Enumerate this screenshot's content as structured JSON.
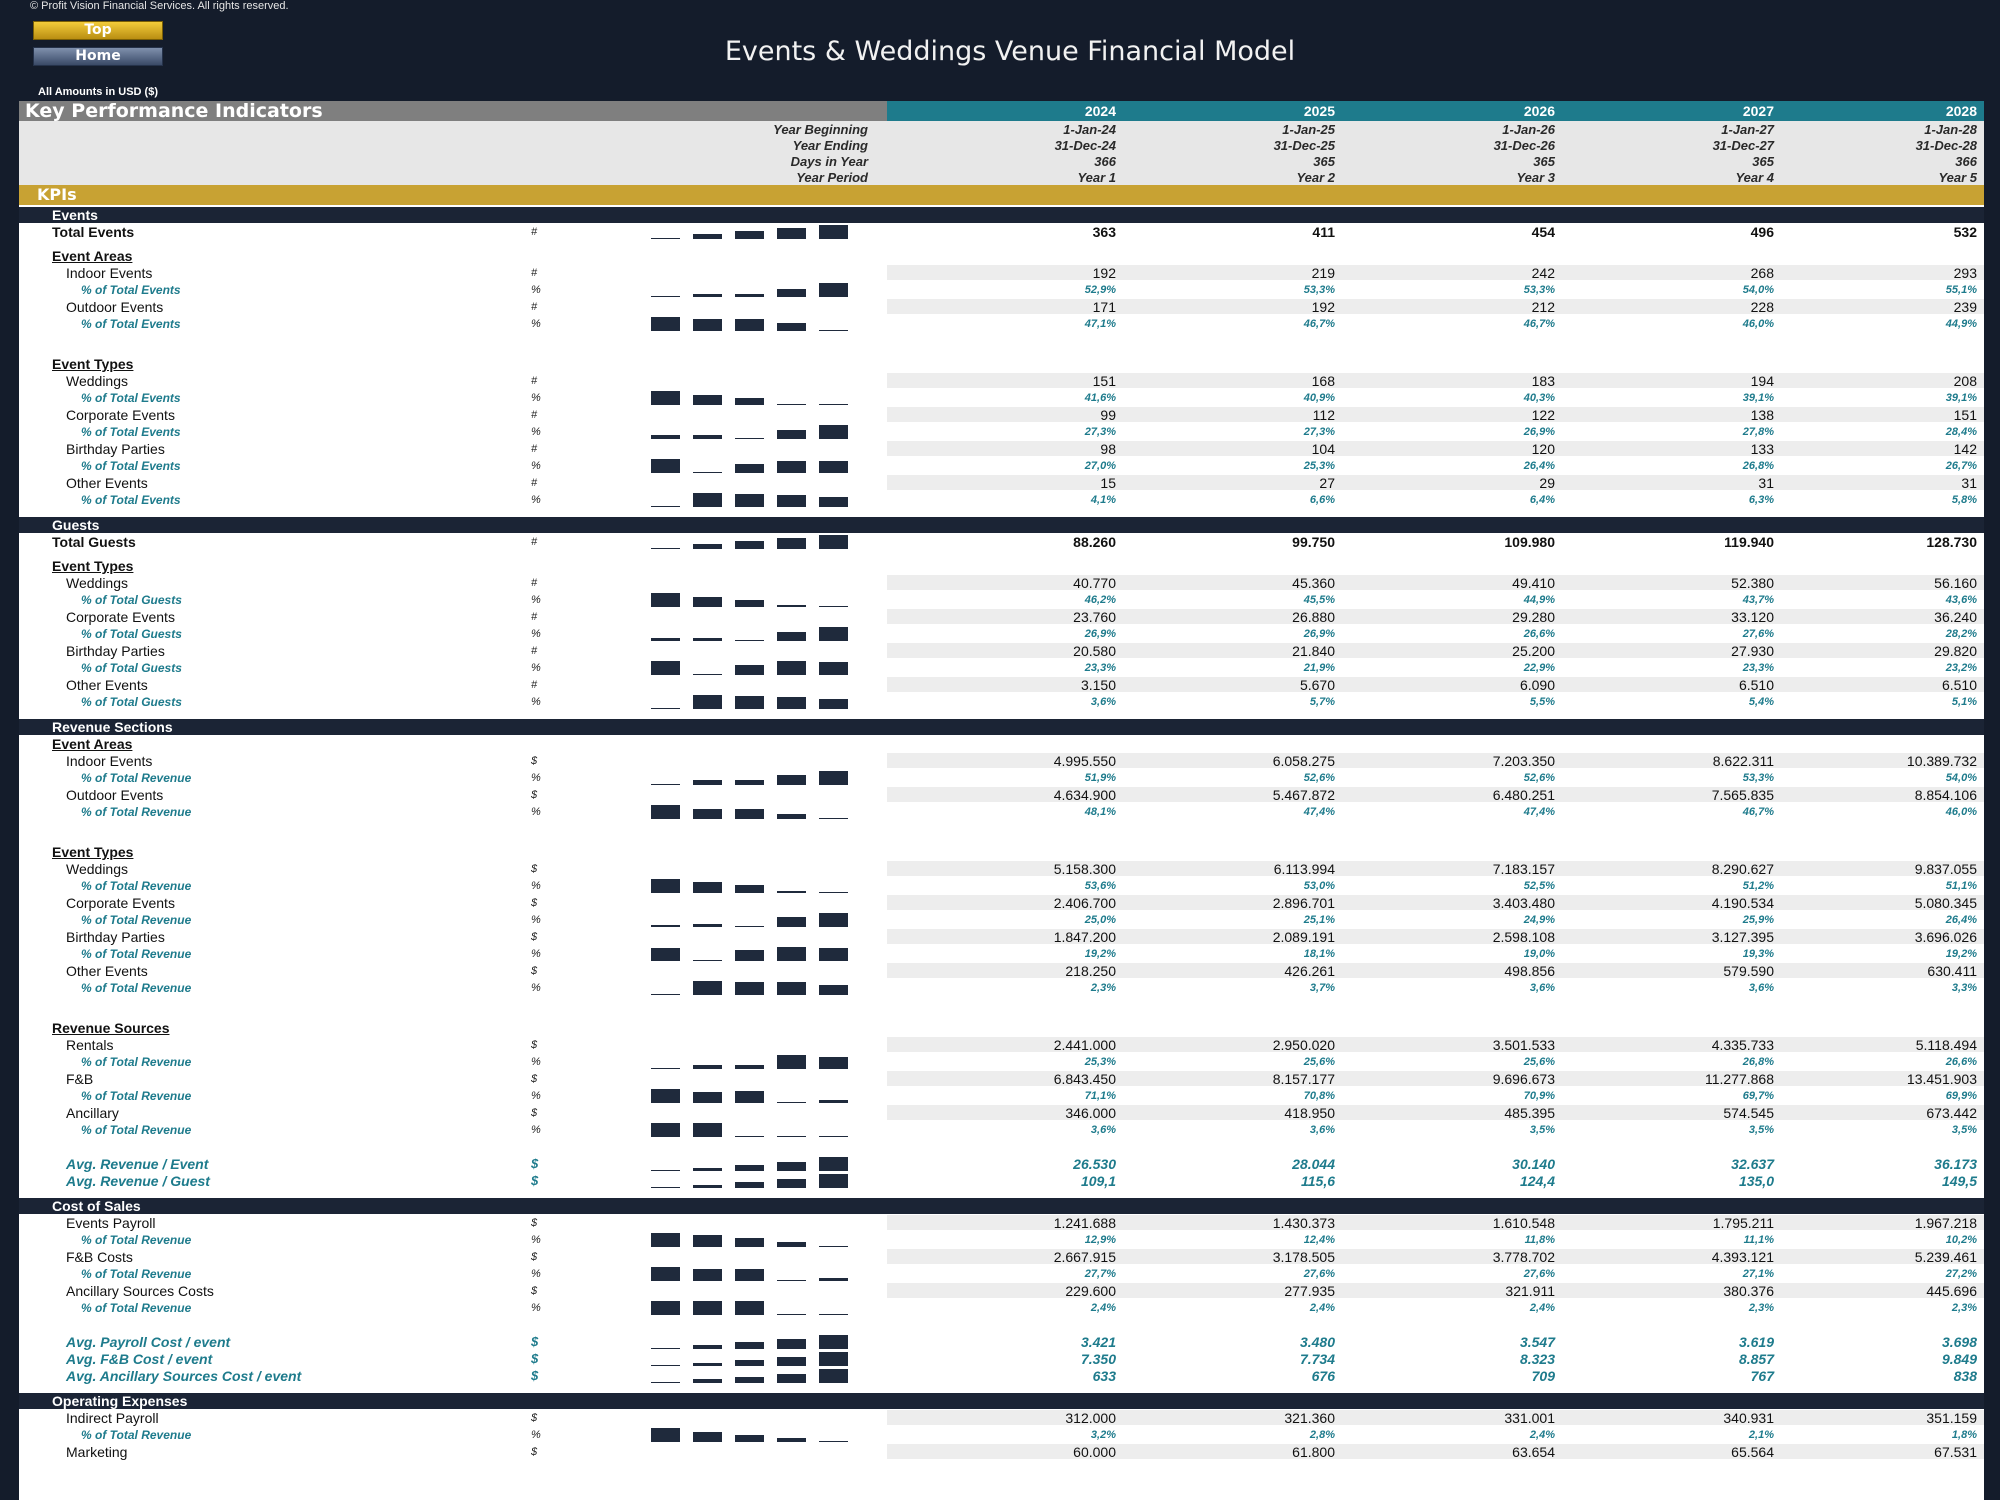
{
  "header": {
    "copyright": "© Profit Vision Financial Services. All rights reserved.",
    "top_button": "Top",
    "home_button": "Home",
    "title": "Events & Weddings Venue Financial Model",
    "amounts": "All Amounts in  USD ($)"
  },
  "colors": {
    "background": "#141c2b",
    "teal": "#1e7b8c",
    "gold": "#c8a233",
    "navy": "#1b2435",
    "gray_header": "#7f7f7f"
  },
  "kpi_title": "Key Performance Indicators",
  "kpis_label": "KPIs",
  "years": [
    "2024",
    "2025",
    "2026",
    "2027",
    "2028"
  ],
  "info": {
    "labels": [
      "Year Beginning",
      "Year Ending",
      "Days in Year",
      "Year Period"
    ],
    "rows": [
      [
        "1-Jan-24",
        "1-Jan-25",
        "1-Jan-26",
        "1-Jan-27",
        "1-Jan-28"
      ],
      [
        "31-Dec-24",
        "31-Dec-25",
        "31-Dec-26",
        "31-Dec-27",
        "31-Dec-28"
      ],
      [
        "366",
        "365",
        "365",
        "365",
        "366"
      ],
      [
        "Year 1",
        "Year 2",
        "Year 3",
        "Year 4",
        "Year 5"
      ]
    ]
  },
  "rows": [
    {
      "k": "section",
      "label": "Events"
    },
    {
      "k": "total",
      "label": "Total Events",
      "unit": "#",
      "v": [
        "363",
        "411",
        "454",
        "496",
        "532"
      ]
    },
    {
      "k": "sub",
      "label": "Event Areas"
    },
    {
      "k": "item",
      "label": "Indoor Events",
      "unit": "#",
      "v": [
        "192",
        "219",
        "242",
        "268",
        "293"
      ]
    },
    {
      "k": "pct",
      "label": "% of Total Events",
      "unit": "%",
      "v": [
        "52,9%",
        "53,3%",
        "53,3%",
        "54,0%",
        "55,1%"
      ]
    },
    {
      "k": "item",
      "label": "Outdoor Events",
      "unit": "#",
      "v": [
        "171",
        "192",
        "212",
        "228",
        "239"
      ]
    },
    {
      "k": "pct",
      "label": "% of Total Events",
      "unit": "%",
      "v": [
        "47,1%",
        "46,7%",
        "46,7%",
        "46,0%",
        "44,9%"
      ]
    },
    {
      "k": "sub",
      "label": "Event Types"
    },
    {
      "k": "item",
      "label": "Weddings",
      "unit": "#",
      "v": [
        "151",
        "168",
        "183",
        "194",
        "208"
      ]
    },
    {
      "k": "pct",
      "label": "% of Total Events",
      "unit": "%",
      "v": [
        "41,6%",
        "40,9%",
        "40,3%",
        "39,1%",
        "39,1%"
      ]
    },
    {
      "k": "item",
      "label": "Corporate Events",
      "unit": "#",
      "v": [
        "99",
        "112",
        "122",
        "138",
        "151"
      ]
    },
    {
      "k": "pct",
      "label": "% of Total Events",
      "unit": "%",
      "v": [
        "27,3%",
        "27,3%",
        "26,9%",
        "27,8%",
        "28,4%"
      ]
    },
    {
      "k": "item",
      "label": "Birthday Parties",
      "unit": "#",
      "v": [
        "98",
        "104",
        "120",
        "133",
        "142"
      ]
    },
    {
      "k": "pct",
      "label": "% of Total Events",
      "unit": "%",
      "v": [
        "27,0%",
        "25,3%",
        "26,4%",
        "26,8%",
        "26,7%"
      ]
    },
    {
      "k": "item",
      "label": "Other Events",
      "unit": "#",
      "v": [
        "15",
        "27",
        "29",
        "31",
        "31"
      ]
    },
    {
      "k": "pct",
      "label": "% of Total Events",
      "unit": "%",
      "v": [
        "4,1%",
        "6,6%",
        "6,4%",
        "6,3%",
        "5,8%"
      ]
    },
    {
      "k": "section",
      "label": "Guests"
    },
    {
      "k": "total",
      "label": "Total Guests",
      "unit": "#",
      "v": [
        "88.260",
        "99.750",
        "109.980",
        "119.940",
        "128.730"
      ]
    },
    {
      "k": "sub",
      "label": "Event Types"
    },
    {
      "k": "item",
      "label": "Weddings",
      "unit": "#",
      "v": [
        "40.770",
        "45.360",
        "49.410",
        "52.380",
        "56.160"
      ]
    },
    {
      "k": "pct",
      "label": "% of Total Guests",
      "unit": "%",
      "v": [
        "46,2%",
        "45,5%",
        "44,9%",
        "43,7%",
        "43,6%"
      ]
    },
    {
      "k": "item",
      "label": "Corporate Events",
      "unit": "#",
      "v": [
        "23.760",
        "26.880",
        "29.280",
        "33.120",
        "36.240"
      ]
    },
    {
      "k": "pct",
      "label": "% of Total Guests",
      "unit": "%",
      "v": [
        "26,9%",
        "26,9%",
        "26,6%",
        "27,6%",
        "28,2%"
      ]
    },
    {
      "k": "item",
      "label": "Birthday Parties",
      "unit": "#",
      "v": [
        "20.580",
        "21.840",
        "25.200",
        "27.930",
        "29.820"
      ]
    },
    {
      "k": "pct",
      "label": "% of Total Guests",
      "unit": "%",
      "v": [
        "23,3%",
        "21,9%",
        "22,9%",
        "23,3%",
        "23,2%"
      ]
    },
    {
      "k": "item",
      "label": "Other Events",
      "unit": "#",
      "v": [
        "3.150",
        "5.670",
        "6.090",
        "6.510",
        "6.510"
      ]
    },
    {
      "k": "pct",
      "label": "% of Total Guests",
      "unit": "%",
      "v": [
        "3,6%",
        "5,7%",
        "5,5%",
        "5,4%",
        "5,1%"
      ]
    },
    {
      "k": "section",
      "label": "Revenue Sections"
    },
    {
      "k": "sub",
      "label": "Event Areas"
    },
    {
      "k": "item",
      "label": "Indoor Events",
      "unit": "$",
      "v": [
        "4.995.550",
        "6.058.275",
        "7.203.350",
        "8.622.311",
        "10.389.732"
      ]
    },
    {
      "k": "pct",
      "label": "% of Total Revenue",
      "unit": "%",
      "v": [
        "51,9%",
        "52,6%",
        "52,6%",
        "53,3%",
        "54,0%"
      ]
    },
    {
      "k": "item",
      "label": "Outdoor Events",
      "unit": "$",
      "v": [
        "4.634.900",
        "5.467.872",
        "6.480.251",
        "7.565.835",
        "8.854.106"
      ]
    },
    {
      "k": "pct",
      "label": "% of Total Revenue",
      "unit": "%",
      "v": [
        "48,1%",
        "47,4%",
        "47,4%",
        "46,7%",
        "46,0%"
      ]
    },
    {
      "k": "sub",
      "label": "Event Types"
    },
    {
      "k": "item",
      "label": "Weddings",
      "unit": "$",
      "v": [
        "5.158.300",
        "6.113.994",
        "7.183.157",
        "8.290.627",
        "9.837.055"
      ]
    },
    {
      "k": "pct",
      "label": "% of Total Revenue",
      "unit": "%",
      "v": [
        "53,6%",
        "53,0%",
        "52,5%",
        "51,2%",
        "51,1%"
      ]
    },
    {
      "k": "item",
      "label": "Corporate Events",
      "unit": "$",
      "v": [
        "2.406.700",
        "2.896.701",
        "3.403.480",
        "4.190.534",
        "5.080.345"
      ]
    },
    {
      "k": "pct",
      "label": "% of Total Revenue",
      "unit": "%",
      "v": [
        "25,0%",
        "25,1%",
        "24,9%",
        "25,9%",
        "26,4%"
      ]
    },
    {
      "k": "item",
      "label": "Birthday Parties",
      "unit": "$",
      "v": [
        "1.847.200",
        "2.089.191",
        "2.598.108",
        "3.127.395",
        "3.696.026"
      ]
    },
    {
      "k": "pct",
      "label": "% of Total Revenue",
      "unit": "%",
      "v": [
        "19,2%",
        "18,1%",
        "19,0%",
        "19,3%",
        "19,2%"
      ]
    },
    {
      "k": "item",
      "label": "Other Events",
      "unit": "$",
      "v": [
        "218.250",
        "426.261",
        "498.856",
        "579.590",
        "630.411"
      ]
    },
    {
      "k": "pct",
      "label": "% of Total Revenue",
      "unit": "%",
      "v": [
        "2,3%",
        "3,7%",
        "3,6%",
        "3,6%",
        "3,3%"
      ]
    },
    {
      "k": "sub",
      "label": "Revenue Sources"
    },
    {
      "k": "item",
      "label": "Rentals",
      "unit": "$",
      "v": [
        "2.441.000",
        "2.950.020",
        "3.501.533",
        "4.335.733",
        "5.118.494"
      ]
    },
    {
      "k": "pct",
      "label": "% of Total Revenue",
      "unit": "%",
      "v": [
        "25,3%",
        "25,6%",
        "25,6%",
        "26,8%",
        "26,6%"
      ]
    },
    {
      "k": "item",
      "label": "F&B",
      "unit": "$",
      "v": [
        "6.843.450",
        "8.157.177",
        "9.696.673",
        "11.277.868",
        "13.451.903"
      ]
    },
    {
      "k": "pct",
      "label": "% of Total Revenue",
      "unit": "%",
      "v": [
        "71,1%",
        "70,8%",
        "70,9%",
        "69,7%",
        "69,9%"
      ]
    },
    {
      "k": "item",
      "label": "Ancillary",
      "unit": "$",
      "v": [
        "346.000",
        "418.950",
        "485.395",
        "574.545",
        "673.442"
      ]
    },
    {
      "k": "pct",
      "label": "% of Total Revenue",
      "unit": "%",
      "v": [
        "3,6%",
        "3,6%",
        "3,5%",
        "3,5%",
        "3,5%"
      ]
    },
    {
      "k": "avg",
      "label": "Avg. Revenue / Event",
      "unit": "$",
      "v": [
        "26.530",
        "28.044",
        "30.140",
        "32.637",
        "36.173"
      ]
    },
    {
      "k": "avg",
      "label": "Avg. Revenue / Guest",
      "unit": "$",
      "v": [
        "109,1",
        "115,6",
        "124,4",
        "135,0",
        "149,5"
      ]
    },
    {
      "k": "section",
      "label": "Cost of Sales"
    },
    {
      "k": "item",
      "label": "Events Payroll",
      "unit": "$",
      "v": [
        "1.241.688",
        "1.430.373",
        "1.610.548",
        "1.795.211",
        "1.967.218"
      ]
    },
    {
      "k": "pct",
      "label": "% of Total Revenue",
      "unit": "%",
      "v": [
        "12,9%",
        "12,4%",
        "11,8%",
        "11,1%",
        "10,2%"
      ]
    },
    {
      "k": "item",
      "label": "F&B Costs",
      "unit": "$",
      "v": [
        "2.667.915",
        "3.178.505",
        "3.778.702",
        "4.393.121",
        "5.239.461"
      ]
    },
    {
      "k": "pct",
      "label": "% of Total Revenue",
      "unit": "%",
      "v": [
        "27,7%",
        "27,6%",
        "27,6%",
        "27,1%",
        "27,2%"
      ]
    },
    {
      "k": "item",
      "label": "Ancillary Sources Costs",
      "unit": "$",
      "v": [
        "229.600",
        "277.935",
        "321.911",
        "380.376",
        "445.696"
      ]
    },
    {
      "k": "pct",
      "label": "% of Total Revenue",
      "unit": "%",
      "v": [
        "2,4%",
        "2,4%",
        "2,4%",
        "2,3%",
        "2,3%"
      ]
    },
    {
      "k": "avg",
      "label": "Avg. Payroll Cost / event",
      "unit": "$",
      "v": [
        "3.421",
        "3.480",
        "3.547",
        "3.619",
        "3.698"
      ]
    },
    {
      "k": "avg",
      "label": "Avg. F&B Cost / event",
      "unit": "$",
      "v": [
        "7.350",
        "7.734",
        "8.323",
        "8.857",
        "9.849"
      ]
    },
    {
      "k": "avg",
      "label": "Avg. Ancillary Sources Cost / event",
      "unit": "$",
      "v": [
        "633",
        "676",
        "709",
        "767",
        "838"
      ]
    },
    {
      "k": "section",
      "label": "Operating Expenses"
    },
    {
      "k": "item",
      "label": "Indirect Payroll",
      "unit": "$",
      "v": [
        "312.000",
        "321.360",
        "331.001",
        "340.931",
        "351.159"
      ]
    },
    {
      "k": "pct",
      "label": "% of Total Revenue",
      "unit": "%",
      "v": [
        "3,2%",
        "2,8%",
        "2,4%",
        "2,1%",
        "1,8%"
      ]
    },
    {
      "k": "item",
      "label": "Marketing",
      "unit": "$",
      "v": [
        "60.000",
        "61.800",
        "63.654",
        "65.564",
        "67.531"
      ]
    }
  ]
}
